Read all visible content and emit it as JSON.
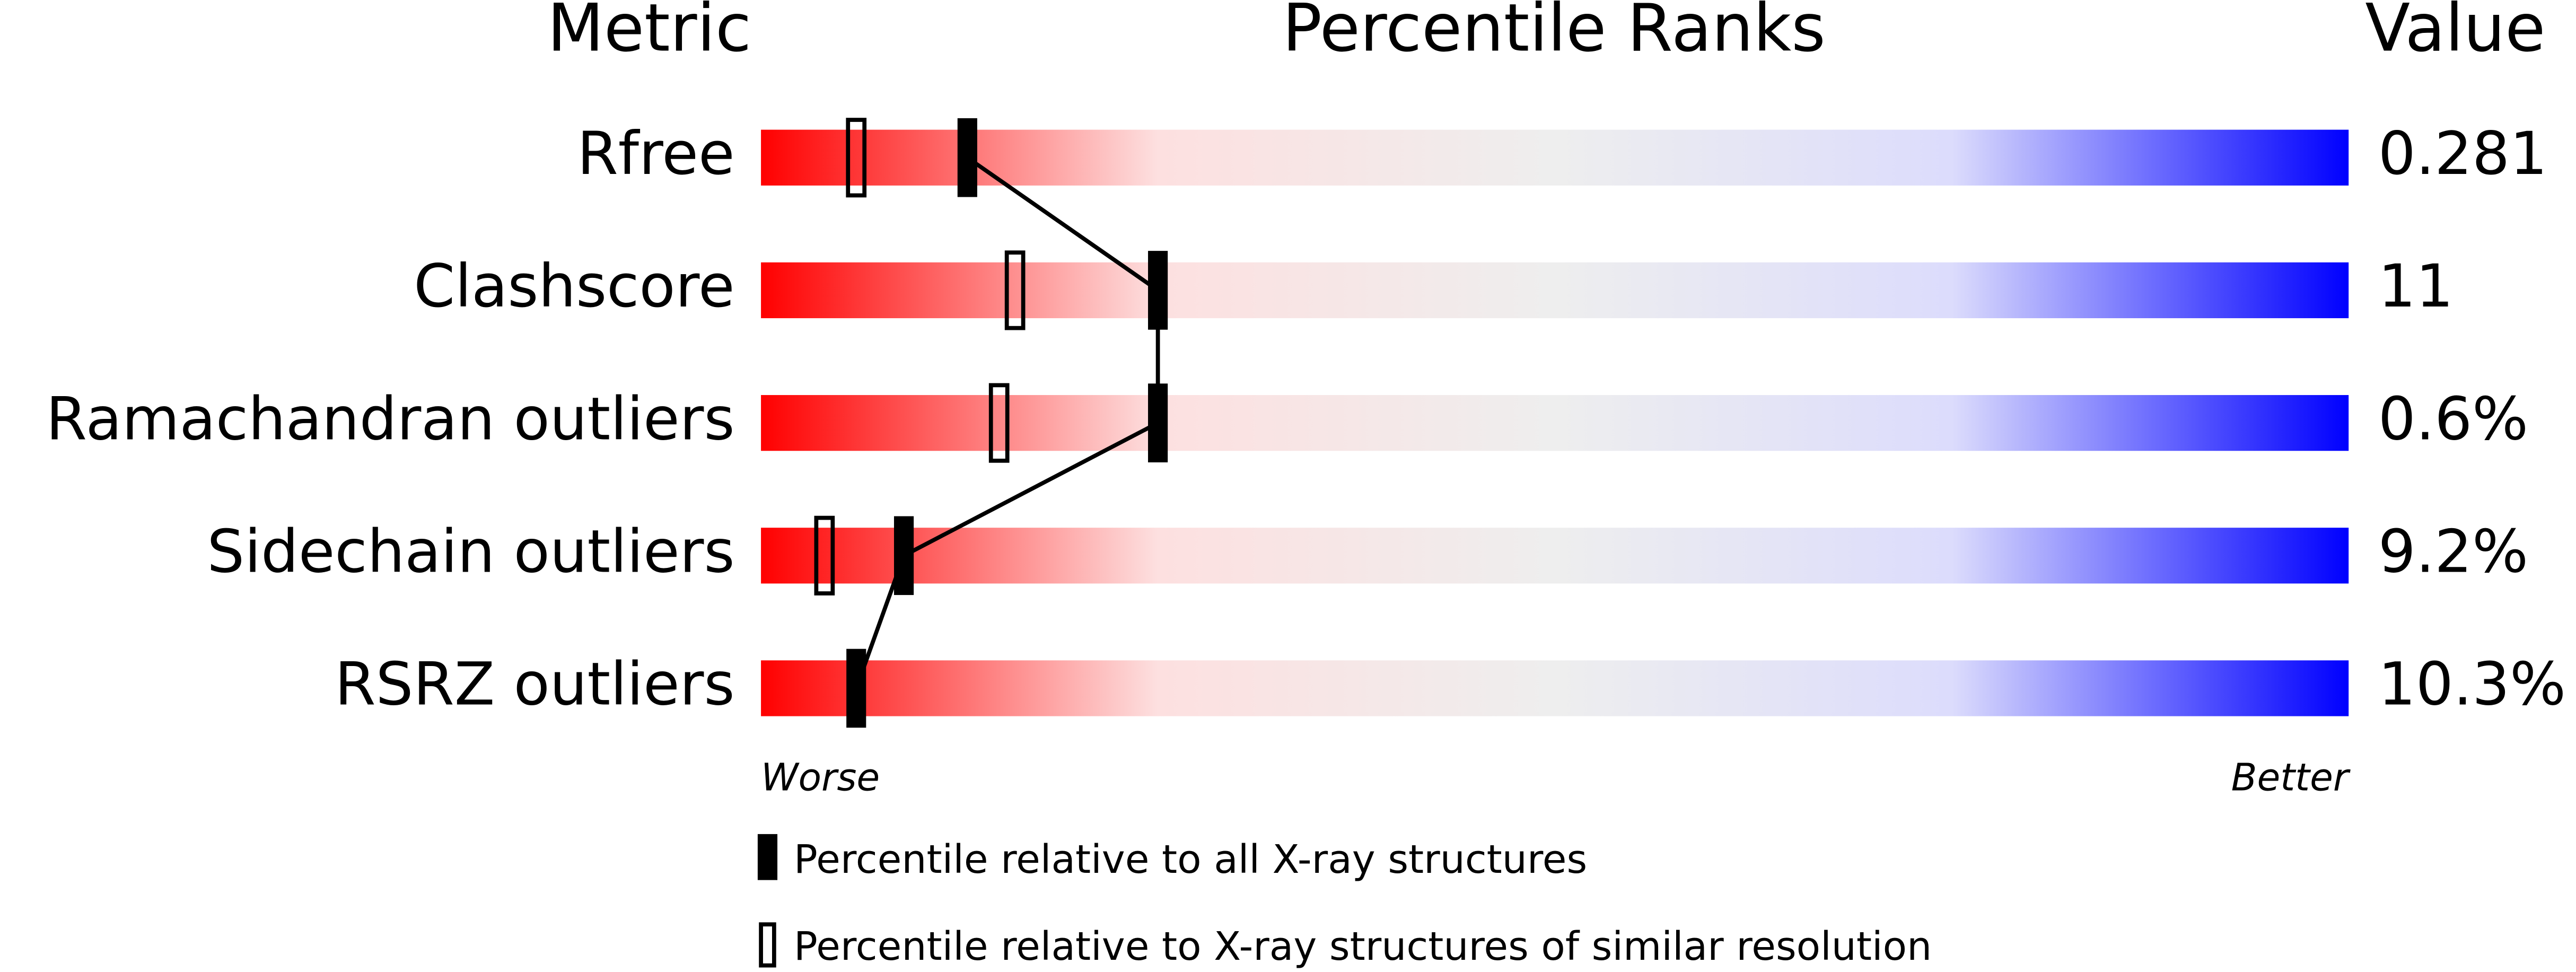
{
  "chart_data": {
    "type": "percentile",
    "metric_header": "Metric",
    "title": "Percentile Ranks",
    "value_header": "Value",
    "categories": [
      "Rfree",
      "Clashscore",
      "Ramachandran outliers",
      "Sidechain outliers",
      "RSRZ outliers"
    ],
    "values": [
      0.281,
      11,
      0.6,
      9.2,
      10.3
    ],
    "value_labels": [
      "0.281",
      "11",
      "0.6%",
      "9.2%",
      "10.3%"
    ],
    "series": [
      {
        "name": "Percentile relative to all X-ray structures",
        "color": "#000000",
        "marker": "filled",
        "values": [
          13,
          25,
          25,
          9,
          6
        ]
      },
      {
        "name": "Percentile relative to X-ray structures of similar resolution",
        "color": "#000000",
        "marker": "open",
        "values": [
          6,
          16,
          15,
          4,
          null
        ]
      }
    ],
    "xlim": [
      0,
      100
    ],
    "worse_label": "Worse",
    "better_label": "Better",
    "gradient": [
      "#ff0000",
      "#fde0e0",
      "#eeeeee",
      "#dcdcfc",
      "#0000ff"
    ]
  }
}
